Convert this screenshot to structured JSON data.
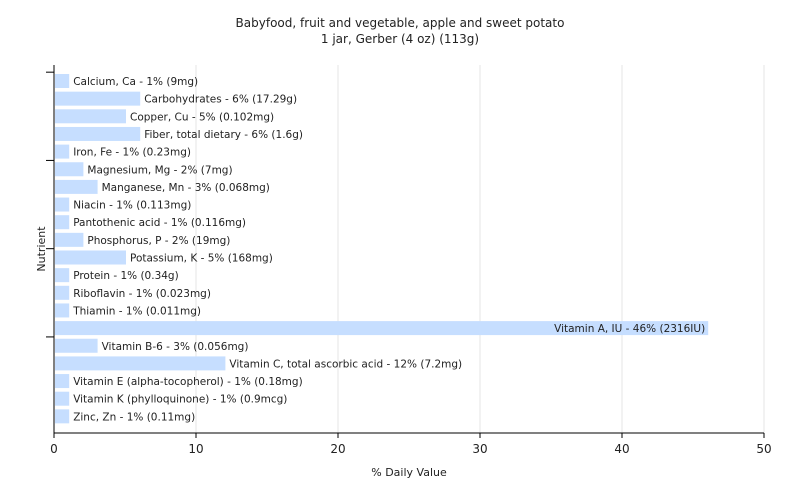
{
  "chart_data": {
    "type": "bar",
    "orientation": "horizontal",
    "title": "Babyfood, fruit and vegetable, apple and sweet potato",
    "subtitle": "1 jar, Gerber (4 oz) (113g)",
    "xlabel": "% Daily Value",
    "ylabel": "Nutrient",
    "xlim": [
      0,
      50
    ],
    "xticks": [
      0,
      10,
      20,
      30,
      40,
      50
    ],
    "grid": true,
    "bar_color": "#c6deff",
    "categories": [
      "Calcium, Ca",
      "Carbohydrates",
      "Copper, Cu",
      "Fiber, total dietary",
      "Iron, Fe",
      "Magnesium, Mg",
      "Manganese, Mn",
      "Niacin",
      "Pantothenic acid",
      "Phosphorus, P",
      "Potassium, K",
      "Protein",
      "Riboflavin",
      "Thiamin",
      "Vitamin A, IU",
      "Vitamin B-6",
      "Vitamin C, total ascorbic acid",
      "Vitamin E (alpha-tocopherol)",
      "Vitamin K (phylloquinone)",
      "Zinc, Zn"
    ],
    "values": [
      1,
      6,
      5,
      6,
      1,
      2,
      3,
      1,
      1,
      2,
      5,
      1,
      1,
      1,
      46,
      3,
      12,
      1,
      1,
      1
    ],
    "labels": [
      "Calcium, Ca - 1% (9mg)",
      "Carbohydrates - 6% (17.29g)",
      "Copper, Cu - 5% (0.102mg)",
      "Fiber, total dietary - 6% (1.6g)",
      "Iron, Fe - 1% (0.23mg)",
      "Magnesium, Mg - 2% (7mg)",
      "Manganese, Mn - 3% (0.068mg)",
      "Niacin - 1% (0.113mg)",
      "Pantothenic acid - 1% (0.116mg)",
      "Phosphorus, P - 2% (19mg)",
      "Potassium, K - 5% (168mg)",
      "Protein - 1% (0.34g)",
      "Riboflavin - 1% (0.023mg)",
      "Thiamin - 1% (0.011mg)",
      "Vitamin A, IU - 46% (2316IU)",
      "Vitamin B-6 - 3% (0.056mg)",
      "Vitamin C, total ascorbic acid - 12% (7.2mg)",
      "Vitamin E (alpha-tocopherol) - 1% (0.18mg)",
      "Vitamin K (phylloquinone) - 1% (0.9mcg)",
      "Zinc, Zn - 1% (0.11mg)"
    ]
  }
}
